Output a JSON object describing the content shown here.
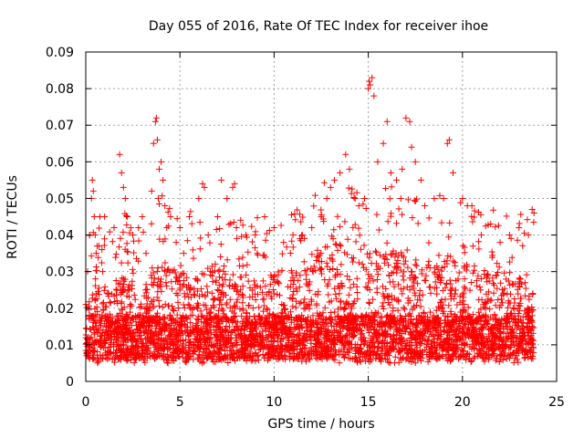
{
  "chart_data": {
    "type": "scatter",
    "title": "Day 055 of 2016, Rate Of TEC Index for receiver ihoe",
    "xlabel": "GPS time / hours",
    "ylabel": "ROTI / TECUs",
    "xlim": [
      0,
      25
    ],
    "ylim": [
      0,
      0.09
    ],
    "xticks": [
      0,
      5,
      10,
      15,
      20,
      25
    ],
    "xtick_labels": [
      "0",
      "5",
      "10",
      "15",
      "20",
      "25"
    ],
    "yticks": [
      0,
      0.01,
      0.02,
      0.03,
      0.04,
      0.05,
      0.06,
      0.07,
      0.08,
      0.09
    ],
    "ytick_labels": [
      "0",
      "0.01",
      "0.02",
      "0.03",
      "0.04",
      "0.05",
      "0.06",
      "0.07",
      "0.08",
      "0.09"
    ],
    "grid": true,
    "marker": "+",
    "marker_color": "#ff0000",
    "legend": "none",
    "series": [
      {
        "name": "ROTI",
        "x": [
          0.1,
          0.2,
          0.3,
          0.35,
          0.4,
          0.45,
          0.5,
          0.55,
          0.7,
          0.75,
          0.9,
          1.0,
          1.5,
          1.8,
          1.9,
          2.0,
          2.1,
          2.2,
          2.5,
          2.8,
          3.0,
          3.2,
          3.5,
          3.6,
          3.7,
          3.75,
          3.8,
          3.85,
          3.9,
          4.0,
          4.1,
          4.2,
          4.3,
          4.5,
          4.8,
          5.0,
          5.2,
          5.5,
          6.0,
          6.2,
          6.3,
          6.5,
          7.0,
          7.2,
          7.5,
          7.8,
          7.9,
          8.0,
          8.5,
          9.0,
          9.5,
          10.0,
          10.5,
          11.0,
          11.5,
          12.0,
          12.5,
          12.8,
          13.0,
          13.2,
          13.5,
          13.8,
          14.0,
          14.3,
          14.5,
          14.8,
          15.0,
          15.05,
          15.1,
          15.2,
          15.3,
          15.5,
          15.8,
          16.0,
          16.2,
          16.5,
          16.8,
          17.0,
          17.2,
          17.3,
          17.5,
          17.8,
          18.0,
          18.5,
          19.0,
          19.2,
          19.3,
          19.5,
          20.0,
          20.5,
          21.0,
          21.5,
          22.0,
          22.5,
          23.0,
          23.5,
          23.7,
          23.8
        ],
        "y": [
          0.03,
          0.04,
          0.05,
          0.055,
          0.052,
          0.045,
          0.04,
          0.035,
          0.037,
          0.045,
          0.03,
          0.045,
          0.042,
          0.062,
          0.057,
          0.053,
          0.05,
          0.045,
          0.04,
          0.042,
          0.045,
          0.035,
          0.052,
          0.065,
          0.071,
          0.072,
          0.066,
          0.05,
          0.058,
          0.06,
          0.055,
          0.048,
          0.042,
          0.045,
          0.038,
          0.042,
          0.035,
          0.045,
          0.05,
          0.054,
          0.053,
          0.04,
          0.045,
          0.055,
          0.05,
          0.053,
          0.054,
          0.042,
          0.04,
          0.04,
          0.045,
          0.042,
          0.038,
          0.04,
          0.04,
          0.042,
          0.045,
          0.05,
          0.053,
          0.055,
          0.057,
          0.062,
          0.058,
          0.05,
          0.048,
          0.05,
          0.08,
          0.082,
          0.081,
          0.083,
          0.078,
          0.06,
          0.065,
          0.071,
          0.057,
          0.055,
          0.058,
          0.072,
          0.071,
          0.064,
          0.06,
          0.055,
          0.048,
          0.05,
          0.05,
          0.065,
          0.066,
          0.057,
          0.05,
          0.048,
          0.04,
          0.043,
          0.038,
          0.04,
          0.042,
          0.04,
          0.047,
          0.046
        ]
      }
    ]
  }
}
